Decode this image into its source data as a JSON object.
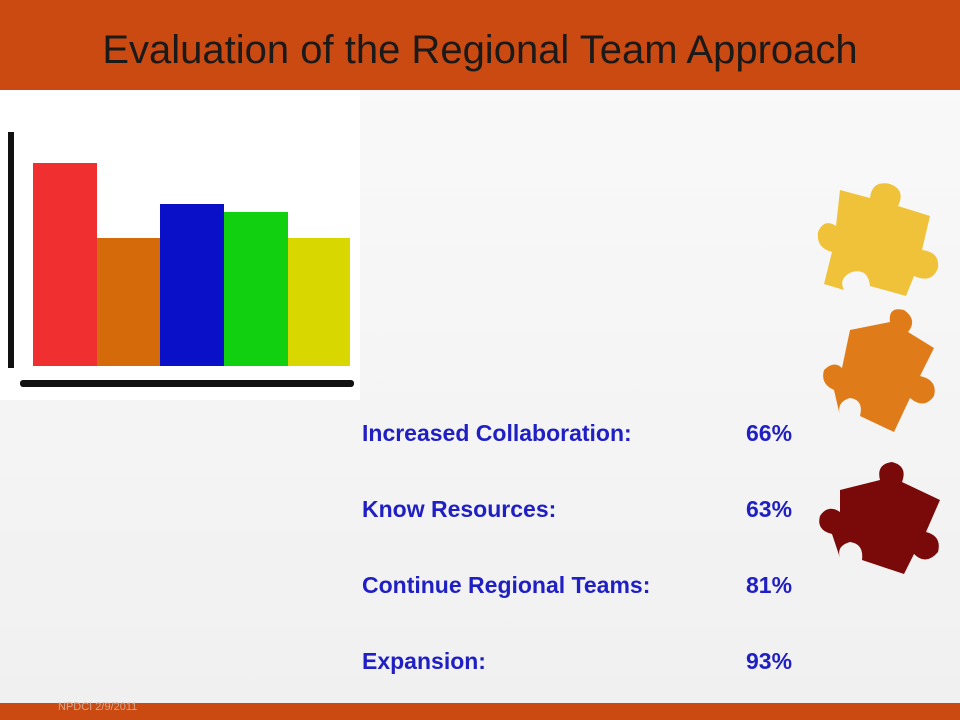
{
  "header": {
    "title": "Evaluation of the Regional Team Approach"
  },
  "items": [
    {
      "label": "Increased Collaboration:",
      "value": "66%"
    },
    {
      "label": "Know Resources:",
      "value": "63%"
    },
    {
      "label": "Continue Regional Teams:",
      "value": "81%"
    },
    {
      "label": "Expansion:",
      "value": "93%"
    }
  ],
  "footer": {
    "text": "NPDCI  2/9/2011"
  }
}
